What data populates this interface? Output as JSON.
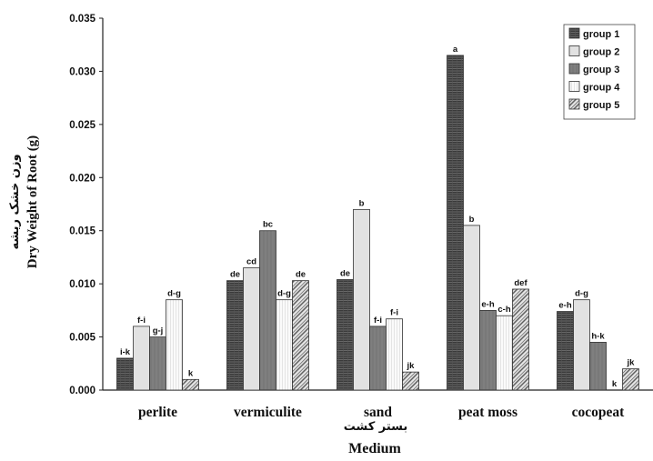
{
  "chart_data": {
    "type": "bar",
    "title": "",
    "xlabel": "Medium",
    "xlabel_persian": "بستر کشت",
    "ylabel": "Dry Weight of Root (g)",
    "ylabel_persian": "وزن خشک ریشه",
    "ylim": [
      0,
      0.035
    ],
    "yticks": [
      "0.000",
      "0.005",
      "0.010",
      "0.015",
      "0.020",
      "0.025",
      "0.030",
      "0.035"
    ],
    "categories": [
      "perlite",
      "vermiculite",
      "sand",
      "peat moss",
      "cocopeat"
    ],
    "series": [
      {
        "name": "group 1",
        "pattern": "pat-dark-grid",
        "values": [
          0.003,
          0.0103,
          0.0104,
          0.0315,
          0.0074
        ],
        "letters": [
          "i-k",
          "de",
          "de",
          "a",
          "e-h"
        ]
      },
      {
        "name": "group 2",
        "pattern": "pat-light-dots",
        "values": [
          0.006,
          0.0115,
          0.017,
          0.0155,
          0.0085
        ],
        "letters": [
          "f-i",
          "cd",
          "b",
          "b",
          "d-g"
        ]
      },
      {
        "name": "group 3",
        "pattern": "pat-mid-grid",
        "values": [
          0.005,
          0.015,
          0.006,
          0.0075,
          0.0045
        ],
        "letters": [
          "g-j",
          "bc",
          "f-i",
          "e-h",
          "h-k"
        ]
      },
      {
        "name": "group 4",
        "pattern": "pat-light-stripe",
        "values": [
          0.0085,
          0.0085,
          0.0067,
          0.007,
          0.0
        ],
        "letters": [
          "d-g",
          "d-g",
          "f-i",
          "c-h",
          "k"
        ]
      },
      {
        "name": "group 5",
        "pattern": "pat-diag",
        "values": [
          0.001,
          0.0103,
          0.0017,
          0.0095,
          0.002
        ],
        "letters": [
          "k",
          "de",
          "jk",
          "def",
          "jk"
        ]
      }
    ],
    "legend_position": "top-right",
    "grid": false
  }
}
